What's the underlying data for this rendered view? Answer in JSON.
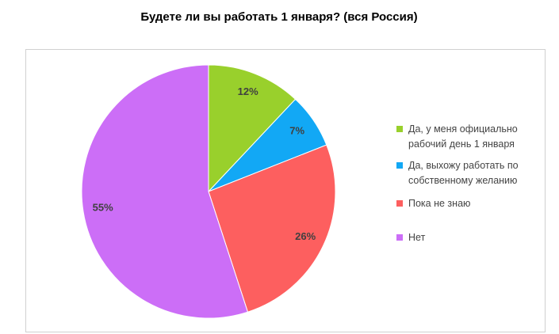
{
  "chart_data": {
    "type": "pie",
    "title": "Будете ли вы работать 1 января? (вся Россия)",
    "categories": [
      "Да, у меня официально рабочий день 1 января",
      "Да, выхожу работать по собственному желанию",
      "Пока не знаю",
      "Нет"
    ],
    "values": [
      12,
      7,
      26,
      55
    ],
    "value_labels": [
      "12%",
      "7%",
      "26%",
      "55%"
    ],
    "colors": [
      "#99d02c",
      "#12a8f5",
      "#fd5f5f",
      "#cc6ef7"
    ],
    "legend": "right"
  }
}
